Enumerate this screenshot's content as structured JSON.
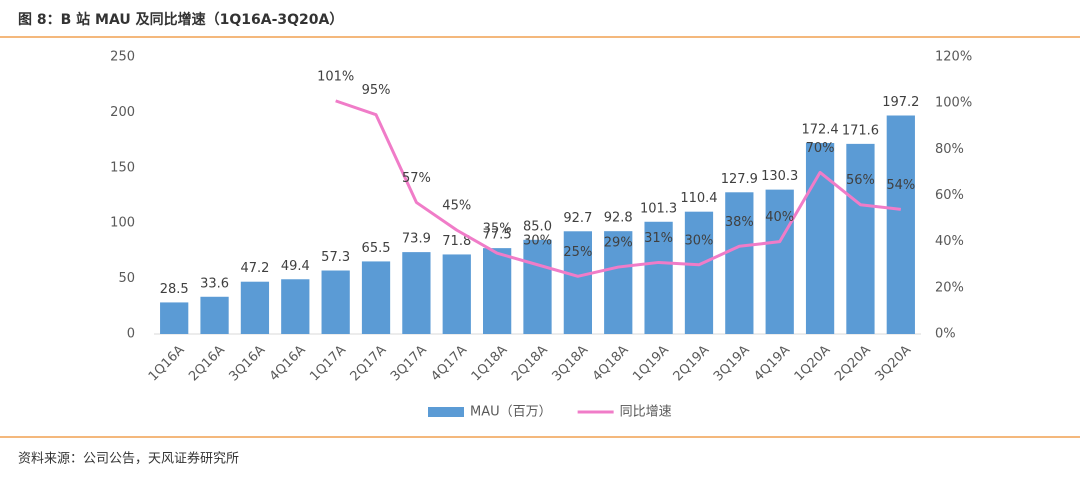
{
  "chart_data": {
    "type": "bar_line",
    "title": "图 8：B 站 MAU 及同比增速（1Q16A-3Q20A）",
    "source": "资料来源：公司公告，天风证券研究所",
    "categories": [
      "1Q16A",
      "2Q16A",
      "3Q16A",
      "4Q16A",
      "1Q17A",
      "2Q17A",
      "3Q17A",
      "4Q17A",
      "1Q18A",
      "2Q18A",
      "3Q18A",
      "4Q18A",
      "1Q19A",
      "2Q19A",
      "3Q19A",
      "4Q19A",
      "1Q20A",
      "2Q20A",
      "3Q20A"
    ],
    "series": [
      {
        "name": "MAU（百万）",
        "color": "#5b9bd5",
        "kind": "bar",
        "values": [
          28.5,
          33.6,
          47.2,
          49.4,
          57.3,
          65.5,
          73.9,
          71.8,
          77.5,
          85.0,
          92.7,
          92.8,
          101.3,
          110.4,
          127.9,
          130.3,
          172.4,
          171.6,
          197.2
        ],
        "value_labels": [
          "28.5",
          "33.6",
          "47.2",
          "49.4",
          "57.3",
          "65.5",
          "73.9",
          "71.8",
          "77.5",
          "85.0",
          "92.7",
          "92.8",
          "101.3",
          "110.4",
          "127.9",
          "130.3",
          "172.4",
          "171.6",
          "197.2"
        ]
      },
      {
        "name": "同比增速",
        "color": "#f07cc8",
        "kind": "line",
        "axis": "y2",
        "values": [
          null,
          null,
          null,
          null,
          101,
          95,
          57,
          45,
          35,
          30,
          25,
          29,
          31,
          30,
          38,
          40,
          70,
          56,
          54
        ],
        "value_labels": [
          null,
          null,
          null,
          null,
          "101%",
          "95%",
          "57%",
          "45%",
          "35%",
          "30%",
          "25%",
          "29%",
          "31%",
          "30%",
          "38%",
          "40%",
          "70%",
          "56%",
          "54%"
        ]
      }
    ],
    "ylim": [
      0,
      250
    ],
    "yticks": [
      0,
      50,
      100,
      150,
      200,
      250
    ],
    "y2lim": [
      0,
      120
    ],
    "y2ticks": [
      {
        "value": 0,
        "label": "0%"
      },
      {
        "value": 20,
        "label": "20%"
      },
      {
        "value": 40,
        "label": "40%"
      },
      {
        "value": 60,
        "label": "60%"
      },
      {
        "value": 80,
        "label": "80%"
      },
      {
        "value": 100,
        "label": "100%"
      },
      {
        "value": 120,
        "label": "120%"
      }
    ],
    "legend": "bottom"
  }
}
